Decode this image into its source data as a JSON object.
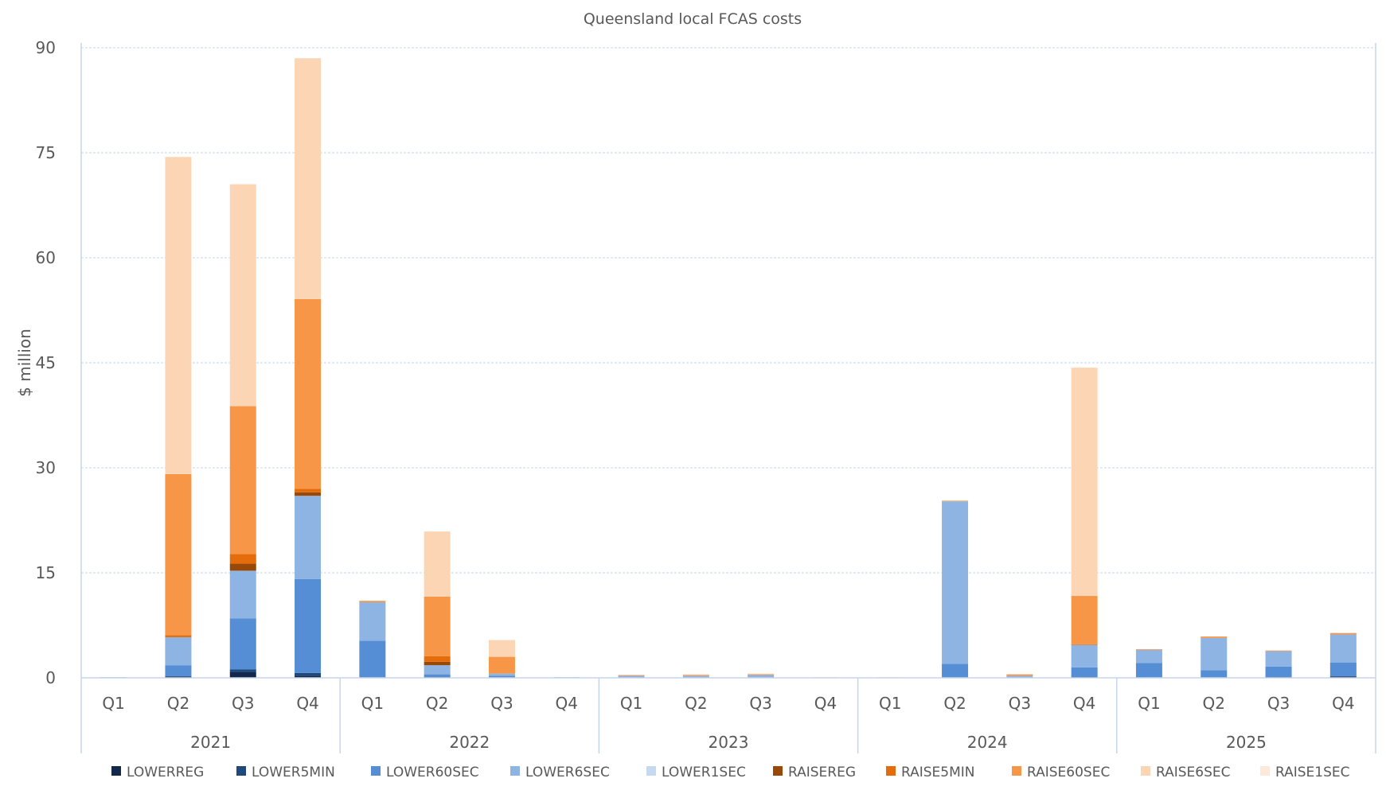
{
  "chart_data": {
    "type": "bar",
    "stacked": true,
    "title": "Queensland local FCAS costs",
    "xlabel": "",
    "ylabel": "$ million",
    "ylim": [
      0,
      90
    ],
    "yticks": [
      0,
      15,
      30,
      45,
      60,
      75,
      90
    ],
    "grid": "horizontal dashed",
    "legend_position": "bottom",
    "groups": [
      {
        "label": "2021",
        "categories": [
          "Q1",
          "Q2",
          "Q3",
          "Q4"
        ]
      },
      {
        "label": "2022",
        "categories": [
          "Q1",
          "Q2",
          "Q3",
          "Q4"
        ]
      },
      {
        "label": "2023",
        "categories": [
          "Q1",
          "Q2",
          "Q3",
          "Q4"
        ]
      },
      {
        "label": "2024",
        "categories": [
          "Q1",
          "Q2",
          "Q3",
          "Q4"
        ]
      },
      {
        "label": "2025",
        "categories": [
          "Q1",
          "Q2",
          "Q3",
          "Q4"
        ]
      }
    ],
    "series": [
      {
        "name": "LOWERREG",
        "color": "#14284b",
        "values": [
          0,
          0.2,
          0.8,
          0.3,
          0,
          0.1,
          0,
          0,
          0,
          0,
          0,
          0,
          0,
          0,
          0,
          0.1,
          0,
          0,
          0.1,
          0.2
        ]
      },
      {
        "name": "LOWER5MIN",
        "color": "#1f497d",
        "values": [
          0,
          0,
          0.4,
          0.4,
          0,
          0,
          0,
          0,
          0,
          0,
          0,
          0,
          0,
          0,
          0,
          0,
          0,
          0,
          0,
          0
        ]
      },
      {
        "name": "LOWER60SEC",
        "color": "#558ed5",
        "values": [
          0,
          1.6,
          7.3,
          13.4,
          5.3,
          0.4,
          0.3,
          0,
          0.1,
          0.1,
          0.1,
          0,
          0,
          2.0,
          0.1,
          1.4,
          2.1,
          1.1,
          1.5,
          2.0
        ]
      },
      {
        "name": "LOWER6SEC",
        "color": "#8eb4e3",
        "values": [
          0.1,
          4.0,
          6.8,
          11.9,
          5.5,
          1.3,
          0.3,
          0.1,
          0.2,
          0.2,
          0.3,
          0,
          0,
          23.2,
          0.2,
          3.2,
          1.9,
          4.6,
          2.2,
          4.0
        ]
      },
      {
        "name": "LOWER1SEC",
        "color": "#c6d9f1",
        "values": [
          0,
          0,
          0,
          0,
          0,
          0,
          0,
          0,
          0,
          0,
          0,
          0,
          0,
          0,
          0,
          0,
          0,
          0,
          0,
          0
        ]
      },
      {
        "name": "RAISEREG",
        "color": "#984807",
        "values": [
          0,
          0,
          1.0,
          0.5,
          0,
          0.5,
          0,
          0,
          0,
          0,
          0,
          0,
          0,
          0,
          0,
          0,
          0,
          0,
          0,
          0
        ]
      },
      {
        "name": "RAISE5MIN",
        "color": "#e46c0a",
        "values": [
          0,
          0.3,
          1.4,
          0.5,
          0,
          0.8,
          0,
          0,
          0,
          0,
          0,
          0,
          0,
          0,
          0,
          0.1,
          0,
          0,
          0,
          0
        ]
      },
      {
        "name": "RAISE60SEC",
        "color": "#f79646",
        "values": [
          0,
          23.0,
          21.1,
          27.1,
          0.2,
          8.5,
          2.4,
          0,
          0.1,
          0.1,
          0.1,
          0,
          0,
          0.1,
          0.2,
          6.9,
          0.1,
          0.2,
          0.1,
          0.2
        ]
      },
      {
        "name": "RAISE6SEC",
        "color": "#fcd5b5",
        "values": [
          0,
          45.3,
          31.7,
          34.4,
          0,
          9.3,
          2.4,
          0,
          0,
          0.1,
          0.1,
          0.1,
          0.1,
          0,
          0,
          32.6,
          0,
          0,
          0,
          0
        ]
      },
      {
        "name": "RAISE1SEC",
        "color": "#fde9d9",
        "values": [
          0,
          0,
          0,
          0,
          0,
          0,
          0,
          0,
          0,
          0,
          0,
          0,
          0,
          0,
          0,
          0,
          0,
          0,
          0,
          0
        ]
      }
    ]
  }
}
